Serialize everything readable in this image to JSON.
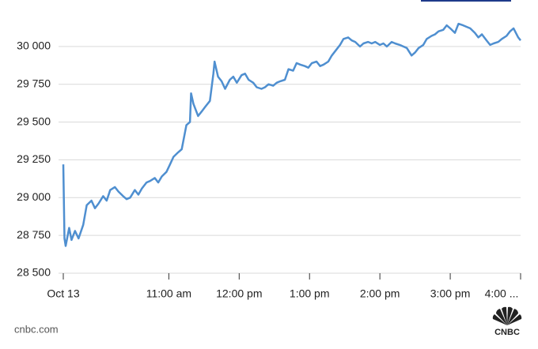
{
  "chart_data": {
    "type": "line",
    "x": [
      "09:30",
      "09:31",
      "09:32",
      "09:35",
      "09:37",
      "09:40",
      "09:43",
      "09:47",
      "09:50",
      "09:54",
      "09:57",
      "10:00",
      "10:04",
      "10:07",
      "10:10",
      "10:14",
      "10:17",
      "10:21",
      "10:24",
      "10:27",
      "10:31",
      "10:34",
      "10:37",
      "10:41",
      "10:44",
      "10:48",
      "10:51",
      "10:54",
      "10:58",
      "11:01",
      "11:04",
      "11:08",
      "11:11",
      "11:15",
      "11:18",
      "11:19",
      "11:21",
      "11:25",
      "11:28",
      "11:31",
      "11:35",
      "11:38",
      "11:39",
      "11:42",
      "11:45",
      "11:48",
      "11:52",
      "11:55",
      "11:58",
      "12:02",
      "12:05",
      "12:08",
      "12:12",
      "12:15",
      "12:19",
      "12:22",
      "12:25",
      "12:29",
      "12:32",
      "12:35",
      "12:39",
      "12:42",
      "12:46",
      "12:49",
      "12:52",
      "12:56",
      "12:59",
      "13:02",
      "13:06",
      "13:09",
      "13:12",
      "13:16",
      "13:19",
      "13:23",
      "13:26",
      "13:29",
      "13:33",
      "13:36",
      "13:39",
      "13:43",
      "13:46",
      "13:50",
      "13:53",
      "13:56",
      "14:00",
      "14:03",
      "14:06",
      "14:10",
      "14:13",
      "14:17",
      "14:20",
      "14:23",
      "14:27",
      "14:30",
      "14:33",
      "14:37",
      "14:40",
      "14:44",
      "14:47",
      "14:50",
      "14:54",
      "14:57",
      "15:00",
      "15:04",
      "15:07",
      "15:11",
      "15:14",
      "15:17",
      "15:21",
      "15:24",
      "15:27",
      "15:31",
      "15:34",
      "15:37",
      "15:41",
      "15:44",
      "15:48",
      "15:51",
      "15:54",
      "15:58",
      "16:00"
    ],
    "series": [
      {
        "color": "#4f8fd0",
        "values": [
          29220,
          28730,
          28680,
          28800,
          28720,
          28780,
          28730,
          28820,
          28950,
          28980,
          28930,
          28960,
          29010,
          28980,
          29050,
          29070,
          29040,
          29010,
          28990,
          29000,
          29050,
          29020,
          29060,
          29100,
          29110,
          29130,
          29100,
          29140,
          29170,
          29220,
          29270,
          29300,
          29320,
          29480,
          29500,
          29690,
          29620,
          29540,
          29570,
          29600,
          29640,
          29820,
          29900,
          29800,
          29770,
          29720,
          29780,
          29800,
          29760,
          29810,
          29820,
          29780,
          29760,
          29730,
          29720,
          29730,
          29750,
          29740,
          29760,
          29770,
          29780,
          29850,
          29840,
          29890,
          29880,
          29870,
          29860,
          29890,
          29900,
          29870,
          29880,
          29900,
          29940,
          29980,
          30010,
          30050,
          30060,
          30040,
          30030,
          30000,
          30020,
          30030,
          30020,
          30030,
          30010,
          30020,
          30000,
          30030,
          30020,
          30010,
          30000,
          29990,
          29940,
          29960,
          29990,
          30010,
          30050,
          30070,
          30080,
          30100,
          30110,
          30140,
          30120,
          30090,
          30150,
          30140,
          30130,
          30120,
          30090,
          30060,
          30080,
          30040,
          30010,
          30020,
          30030,
          30050,
          30070,
          30100,
          30120,
          30060,
          30040
        ]
      }
    ],
    "xlim": [
      "09:30",
      "16:00"
    ],
    "xticks": [
      {
        "value": "09:30",
        "label": "Oct 13"
      },
      {
        "value": "11:00",
        "label": "11:00 am"
      },
      {
        "value": "12:00",
        "label": "12:00 pm"
      },
      {
        "value": "13:00",
        "label": "1:00 pm"
      },
      {
        "value": "14:00",
        "label": "2:00 pm"
      },
      {
        "value": "15:00",
        "label": "3:00 pm"
      },
      {
        "value": "16:00",
        "label": "4:00 ..."
      }
    ],
    "ylim": [
      28500,
      30250
    ],
    "yticks": [
      {
        "value": 28500,
        "label": "28 500"
      },
      {
        "value": 28750,
        "label": "28 750"
      },
      {
        "value": 29000,
        "label": "29 000"
      },
      {
        "value": 29250,
        "label": "29 250"
      },
      {
        "value": 29500,
        "label": "29 500"
      },
      {
        "value": 29750,
        "label": "29 750"
      },
      {
        "value": 30000,
        "label": "30 000"
      }
    ],
    "grid": true
  },
  "source": "cnbc.com",
  "logo": "CNBC"
}
